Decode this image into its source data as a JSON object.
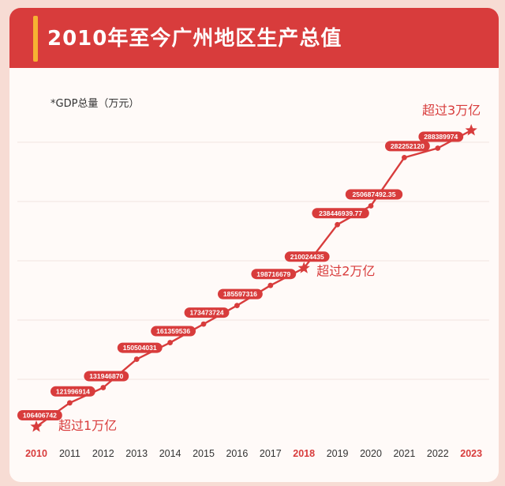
{
  "header": {
    "title": "2010年至今广州地区生产总值"
  },
  "chart_data": {
    "type": "line",
    "title": "2010年至今广州地区生产总值",
    "ylabel": "*GDP总量（万元）",
    "x": [
      "2010",
      "2011",
      "2012",
      "2013",
      "2014",
      "2015",
      "2016",
      "2017",
      "2018",
      "2019",
      "2020",
      "2021",
      "2022",
      "2023"
    ],
    "series": [
      {
        "values": [
          106406742,
          121996914,
          131946870,
          150504031,
          161359536,
          173473724,
          185597316,
          198716679,
          210024435,
          238446939.77,
          250687492.35,
          282252120,
          288389974,
          300000000
        ]
      }
    ],
    "data_labels": [
      "106406742",
      "121996914",
      "131946870",
      "150504031",
      "161359536",
      "173473724",
      "185597316",
      "198716679",
      "210024435",
      "238446939.77",
      "250687492.35",
      "282252120",
      "288389974",
      ""
    ],
    "milestones": [
      {
        "year": "2010",
        "label": "超过1万亿"
      },
      {
        "year": "2018",
        "label": "超过2万亿"
      },
      {
        "year": "2023",
        "label": "超过3万亿"
      }
    ],
    "highlight_years": [
      "2010",
      "2018",
      "2023"
    ],
    "colors": {
      "line": "#d83c3c",
      "highlight_tick": "#d83c3c",
      "tick": "#333333",
      "label_bg": "#d83c3c",
      "label_text": "#ffffff"
    }
  }
}
